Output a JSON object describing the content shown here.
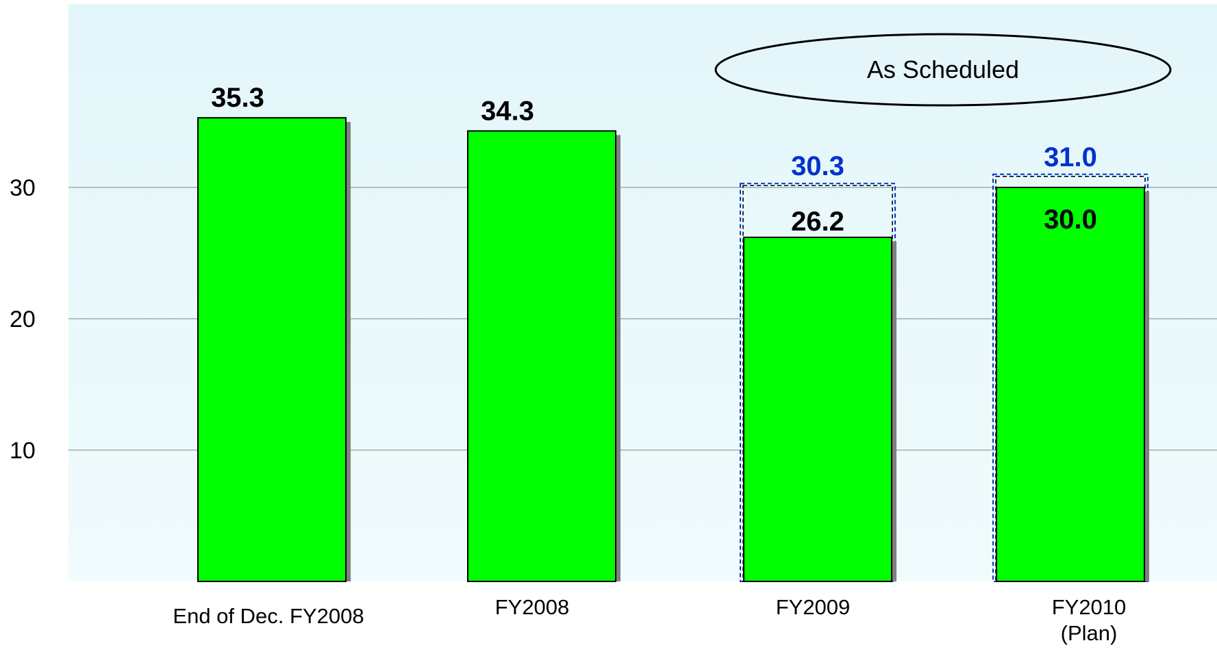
{
  "chart_data": {
    "type": "bar",
    "categories": [
      "End of Dec. FY2008",
      "FY2008",
      "FY2009",
      "FY2010\n(Plan)"
    ],
    "series": [
      {
        "values": [
          35.3,
          34.3,
          26.2,
          30.0
        ],
        "color": "#00ff00"
      },
      {
        "values": [
          null,
          null,
          30.3,
          31.0
        ],
        "color": "#0033cc",
        "style": "dashed-outline"
      }
    ],
    "ylim": [
      0,
      40
    ],
    "yticks": [
      10,
      20,
      30
    ],
    "grid": true,
    "annotation": "As Scheduled",
    "colors": {
      "bar_fill": "#00ff00",
      "bar_stroke": "#000000",
      "bar_shadow": "#808080",
      "target_label": "#0033cc",
      "background_top": "#e6f7fb",
      "background_bottom": "#eefafc"
    }
  }
}
